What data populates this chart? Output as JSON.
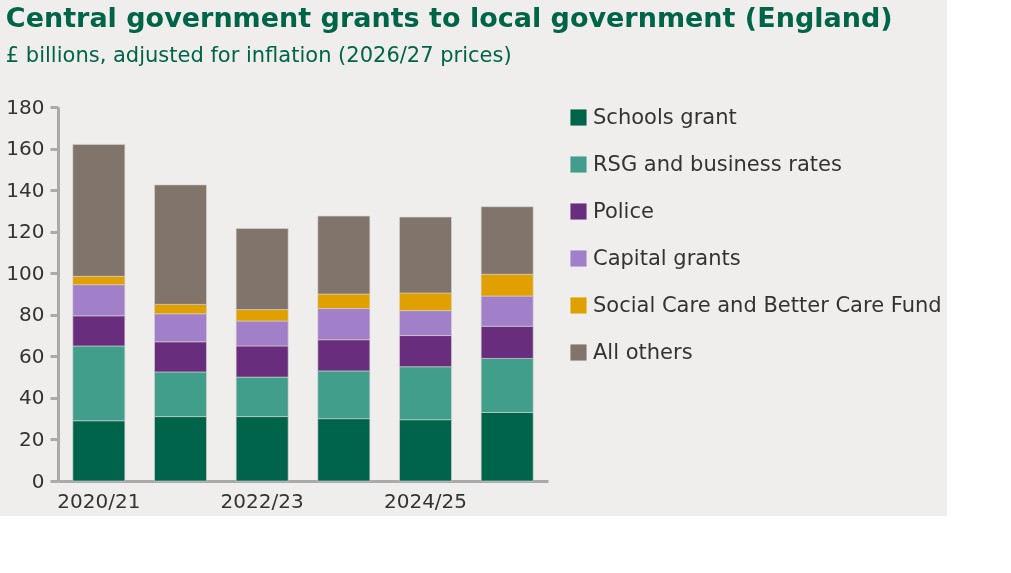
{
  "chart_data": {
    "type": "bar",
    "title": "Central government grants to local government (England)",
    "subtitle": "£ billions, adjusted for inflation (2026/27 prices)",
    "categories": [
      "2020/21",
      null,
      "2022/23",
      null,
      "2024/25",
      null
    ],
    "stacked": true,
    "ylim": [
      0,
      180
    ],
    "yticks": [
      0,
      20,
      40,
      60,
      80,
      100,
      120,
      140,
      160,
      180
    ],
    "grid": false,
    "legend": "right",
    "series": [
      {
        "name": "Schools grant",
        "color": "#00644a",
        "values": [
          29,
          31,
          31,
          30,
          29.5,
          33
        ]
      },
      {
        "name": "RSG and business rates",
        "color": "#409e8a",
        "values": [
          36,
          21.5,
          19,
          23,
          25.5,
          26
        ]
      },
      {
        "name": "Police",
        "color": "#682d7c",
        "values": [
          14.5,
          14.5,
          15,
          15,
          15,
          15.5
        ]
      },
      {
        "name": "Capital grants",
        "color": "#a27fc9",
        "values": [
          15,
          13.5,
          12,
          15,
          12,
          14.5
        ]
      },
      {
        "name": "Social Care and Better Care Fund",
        "color": "#e0a000",
        "values": [
          4,
          4.5,
          5.5,
          7,
          8.5,
          10.5
        ]
      },
      {
        "name": "All others",
        "color": "#81746b",
        "values": [
          63.5,
          57.5,
          39,
          37.5,
          36.5,
          32.5
        ]
      }
    ]
  }
}
